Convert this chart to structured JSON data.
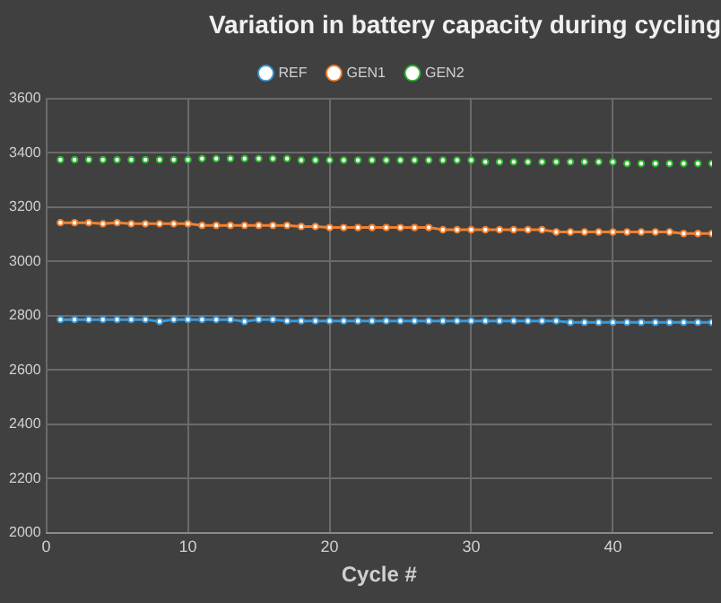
{
  "chart_data": {
    "type": "line",
    "title": "Variation in battery capacity during cycling",
    "xlabel": "Cycle #",
    "x": [
      1,
      2,
      3,
      4,
      5,
      6,
      7,
      8,
      9,
      10,
      11,
      12,
      13,
      14,
      15,
      16,
      17,
      18,
      19,
      20,
      21,
      22,
      23,
      24,
      25,
      26,
      27,
      28,
      29,
      30,
      31,
      32,
      33,
      34,
      35,
      36,
      37,
      38,
      39,
      40,
      41,
      42,
      43,
      44,
      45,
      46,
      47
    ],
    "xlim": [
      0,
      47
    ],
    "xticks": [
      0,
      10,
      20,
      30,
      40
    ],
    "ylim": [
      2000,
      3600
    ],
    "yticks": [
      2000,
      2200,
      2400,
      2600,
      2800,
      3000,
      3200,
      3400,
      3600
    ],
    "grid": true,
    "legend": "top",
    "marker": "circle",
    "series": [
      {
        "name": "REF",
        "type": "line",
        "color": "#3a9ad9",
        "values": [
          2785,
          2785,
          2785,
          2785,
          2785,
          2785,
          2785,
          2778,
          2785,
          2785,
          2785,
          2785,
          2785,
          2778,
          2785,
          2785,
          2780,
          2780,
          2780,
          2780,
          2780,
          2780,
          2780,
          2780,
          2780,
          2780,
          2780,
          2780,
          2780,
          2780,
          2780,
          2780,
          2780,
          2780,
          2780,
          2780,
          2775,
          2775,
          2775,
          2775,
          2775,
          2775,
          2775,
          2775,
          2775,
          2775,
          2775
        ]
      },
      {
        "name": "GEN1",
        "type": "line",
        "color": "#f08030",
        "values": [
          3142,
          3142,
          3142,
          3138,
          3142,
          3138,
          3138,
          3138,
          3138,
          3138,
          3132,
          3132,
          3132,
          3132,
          3132,
          3132,
          3132,
          3128,
          3128,
          3124,
          3124,
          3124,
          3124,
          3124,
          3124,
          3124,
          3124,
          3116,
          3116,
          3116,
          3116,
          3116,
          3116,
          3116,
          3116,
          3108,
          3108,
          3108,
          3108,
          3108,
          3108,
          3108,
          3108,
          3108,
          3102,
          3102,
          3102
        ]
      },
      {
        "name": "GEN2",
        "type": "scatter",
        "color": "#2db52d",
        "values": [
          3374,
          3374,
          3374,
          3374,
          3374,
          3374,
          3374,
          3374,
          3374,
          3374,
          3378,
          3378,
          3378,
          3378,
          3378,
          3378,
          3378,
          3372,
          3372,
          3372,
          3372,
          3372,
          3372,
          3372,
          3372,
          3372,
          3372,
          3372,
          3372,
          3372,
          3366,
          3366,
          3366,
          3366,
          3366,
          3366,
          3366,
          3366,
          3366,
          3366,
          3360,
          3360,
          3360,
          3360,
          3360,
          3360,
          3360
        ]
      }
    ]
  }
}
